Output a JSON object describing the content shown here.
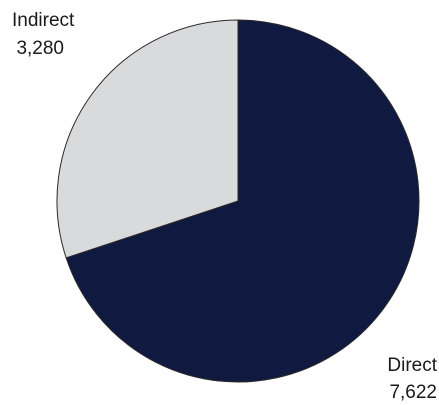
{
  "chart_data": {
    "type": "pie",
    "slices": [
      {
        "label": "Direct",
        "value": 7622,
        "value_text": "7,622",
        "color": "#101a40"
      },
      {
        "label": "Indirect",
        "value": 3280,
        "value_text": "3,280",
        "color": "#d9dadc"
      }
    ],
    "start_angle_deg": 0,
    "direction": "clockwise",
    "slice_border_color": "#2a2a2a"
  }
}
